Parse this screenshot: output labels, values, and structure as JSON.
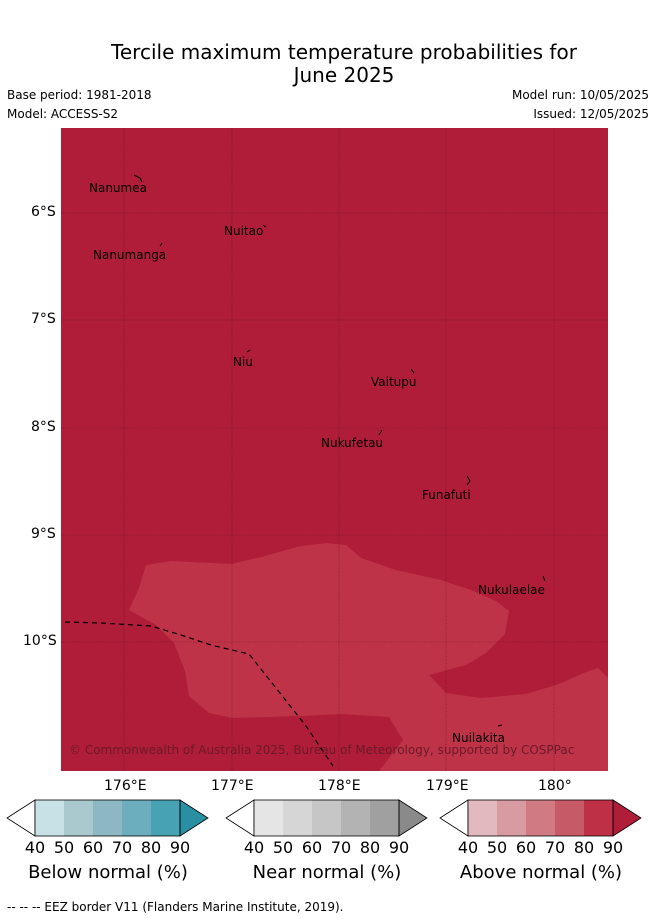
{
  "title_line1": "Tercile maximum temperature probabilities for",
  "title_line2": "June 2025",
  "base_period": "Base period: 1981-2018",
  "model": "Model: ACCESS-S2",
  "model_run": "Model run: 10/05/2025",
  "issued": "Issued: 12/05/2025",
  "lat_ticks": [
    "6°S",
    "7°S",
    "8°S",
    "9°S",
    "10°S"
  ],
  "lon_ticks": [
    "176°E",
    "177°E",
    "178°E",
    "179°E",
    "180°"
  ],
  "islands": [
    "Nanumea",
    "Nuitao",
    "Nanumanga",
    "Niu",
    "Vaitupu",
    "Nukufetau",
    "Funafuti",
    "Nukulaelae",
    "Nuilakita"
  ],
  "copyright": "© Commonwealth of Australia 2025, Bureau of Meteorology, supported by COSPPac",
  "colorbars": [
    {
      "label": "Below normal (%)",
      "ticks": [
        "40",
        "50",
        "60",
        "70",
        "80",
        "90"
      ],
      "colors": [
        "#ffffff",
        "#c8e1e7",
        "#a9c9cf",
        "#8cb7c3",
        "#6caebd",
        "#47a3b3",
        "#2b8fa3"
      ]
    },
    {
      "label": "Near normal (%)",
      "ticks": [
        "40",
        "50",
        "60",
        "70",
        "80",
        "90"
      ],
      "colors": [
        "#ffffff",
        "#e5e5e5",
        "#d6d6d6",
        "#c6c6c6",
        "#b3b3b3",
        "#a0a0a0",
        "#8a8a8a"
      ]
    },
    {
      "label": "Above normal (%)",
      "ticks": [
        "40",
        "50",
        "60",
        "70",
        "80",
        "90"
      ],
      "colors": [
        "#ffffff",
        "#e2b9bf",
        "#d89ba2",
        "#d07b83",
        "#c75a67",
        "#bd3045",
        "#b01d38"
      ]
    }
  ],
  "map_colors": {
    "above_90": "#b01d38",
    "above_80": "#be3348"
  },
  "footer": "--  --  -- EEZ border V11 (Flanders Marine Institute, 2019)."
}
